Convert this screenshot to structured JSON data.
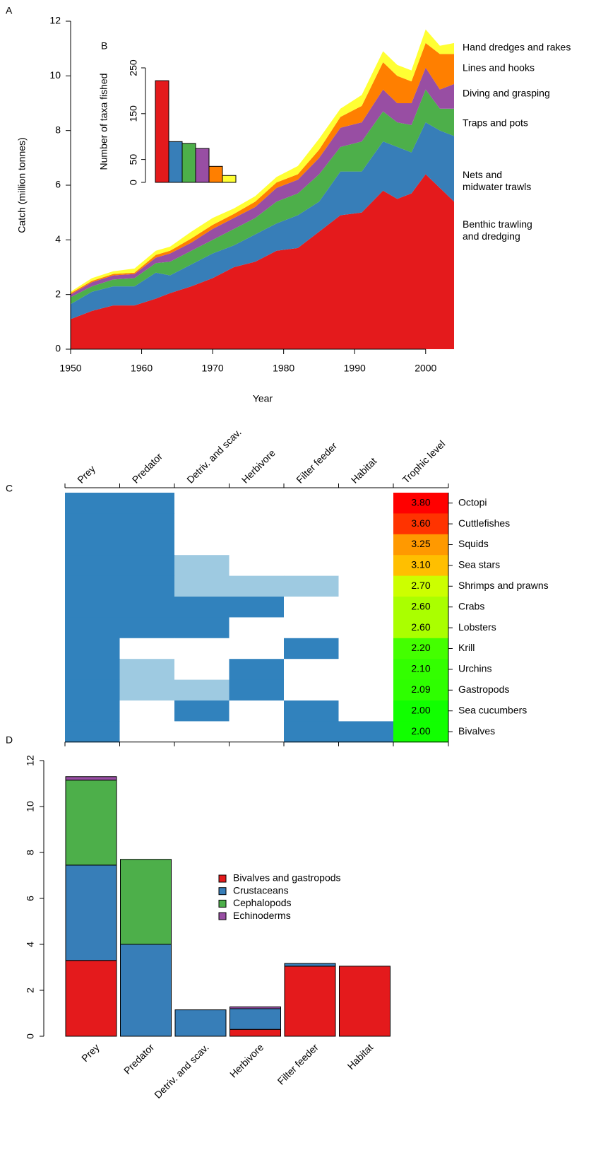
{
  "chart_data": [
    {
      "type": "area",
      "label": "A",
      "xlabel": "Year",
      "ylabel": "Catch (million tonnes)",
      "x": [
        1950,
        1953,
        1956,
        1959,
        1962,
        1964,
        1967,
        1970,
        1973,
        1976,
        1979,
        1982,
        1985,
        1988,
        1991,
        1994,
        1996,
        1998,
        2000,
        2002,
        2004
      ],
      "xlim": [
        1950,
        2004
      ],
      "xticks": [
        1950,
        1960,
        1970,
        1980,
        1990,
        2000
      ],
      "ylim": [
        0,
        12
      ],
      "yticks": [
        0,
        2,
        4,
        6,
        8,
        10,
        12
      ],
      "series": [
        {
          "name": "Benthic trawling\nand dredging",
          "color": "#e41a1c",
          "values": [
            1.1,
            1.4,
            1.6,
            1.6,
            1.85,
            2.05,
            2.3,
            2.6,
            3.0,
            3.2,
            3.6,
            3.7,
            4.3,
            4.9,
            5.0,
            5.8,
            5.5,
            5.7,
            6.4,
            5.9,
            5.4
          ]
        },
        {
          "name": "Nets and\nmidwater trawls",
          "color": "#377eb8",
          "values": [
            0.55,
            0.7,
            0.7,
            0.7,
            0.95,
            0.65,
            0.8,
            0.9,
            0.8,
            1.0,
            1.0,
            1.2,
            1.1,
            1.6,
            1.5,
            1.8,
            1.9,
            1.5,
            1.9,
            2.1,
            2.4
          ]
        },
        {
          "name": "Traps and pots",
          "color": "#4daf4a",
          "values": [
            0.25,
            0.2,
            0.25,
            0.3,
            0.35,
            0.5,
            0.5,
            0.5,
            0.6,
            0.6,
            0.8,
            0.8,
            1.0,
            0.9,
            1.1,
            1.1,
            0.9,
            1.0,
            1.2,
            0.8,
            1.0
          ]
        },
        {
          "name": "Diving and grasping",
          "color": "#984ea3",
          "values": [
            0.1,
            0.15,
            0.15,
            0.15,
            0.2,
            0.3,
            0.3,
            0.4,
            0.4,
            0.4,
            0.5,
            0.5,
            0.6,
            0.7,
            0.7,
            0.8,
            0.7,
            0.8,
            0.8,
            0.7,
            0.9
          ]
        },
        {
          "name": "Lines and hooks",
          "color": "#ff7f00",
          "values": [
            0.05,
            0.05,
            0.05,
            0.05,
            0.1,
            0.1,
            0.15,
            0.15,
            0.15,
            0.2,
            0.2,
            0.2,
            0.3,
            0.4,
            0.6,
            1.0,
            1.0,
            0.8,
            0.9,
            1.3,
            1.1
          ]
        },
        {
          "name": "Hand dredges and rakes",
          "color": "#ffff33",
          "values": [
            0.05,
            0.1,
            0.1,
            0.15,
            0.15,
            0.15,
            0.25,
            0.25,
            0.2,
            0.2,
            0.2,
            0.3,
            0.4,
            0.3,
            0.4,
            0.4,
            0.4,
            0.4,
            0.5,
            0.3,
            0.4
          ]
        }
      ]
    },
    {
      "type": "bar",
      "label": "B",
      "ylabel": "Number of taxa fished",
      "categories": [
        null,
        null,
        null,
        null,
        null,
        null
      ],
      "values": [
        222,
        89,
        85,
        74,
        35,
        15
      ],
      "colors": [
        "#e41a1c",
        "#377eb8",
        "#4daf4a",
        "#984ea3",
        "#ff7f00",
        "#ffff33"
      ],
      "ylim": [
        0,
        250
      ],
      "yticks": [
        0,
        50,
        150,
        250
      ]
    },
    {
      "type": "heatmap",
      "label": "C",
      "columns": [
        "Prey",
        "Predator",
        "Detriv. and scav.",
        "Herbivore",
        "Filter feeder",
        "Habitat"
      ],
      "rows": [
        "Octopi",
        "Cuttlefishes",
        "Squids",
        "Sea stars",
        "Shrimps and prawns",
        "Crabs",
        "Lobsters",
        "Krill",
        "Urchins",
        "Gastropods",
        "Sea cucumbers",
        "Bivalves"
      ],
      "cells": [
        [
          2,
          2,
          0,
          0,
          0,
          0
        ],
        [
          2,
          2,
          0,
          0,
          0,
          0
        ],
        [
          2,
          2,
          0,
          0,
          0,
          0
        ],
        [
          2,
          2,
          1,
          0,
          0,
          0
        ],
        [
          2,
          2,
          1,
          1,
          1,
          0
        ],
        [
          2,
          2,
          2,
          2,
          0,
          0
        ],
        [
          2,
          2,
          2,
          0,
          0,
          0
        ],
        [
          2,
          0,
          0,
          0,
          2,
          0
        ],
        [
          2,
          1,
          0,
          2,
          0,
          0
        ],
        [
          2,
          1,
          1,
          2,
          0,
          0
        ],
        [
          2,
          0,
          2,
          0,
          2,
          0
        ],
        [
          2,
          0,
          0,
          0,
          2,
          2
        ]
      ],
      "cell_colors": [
        "#ffffff",
        "#9ecae1",
        "#3182bd"
      ],
      "trophic": {
        "title": "Trophic level",
        "values": [
          3.8,
          3.6,
          3.25,
          3.1,
          2.7,
          2.6,
          2.6,
          2.2,
          2.1,
          2.09,
          2.0,
          2.0
        ],
        "value_labels": [
          "3.80",
          "3.60",
          "3.25",
          "3.10",
          "2.70",
          "2.60",
          "2.60",
          "2.20",
          "2.10",
          "2.09",
          "2.00",
          "2.00"
        ],
        "colors": [
          "#ff0000",
          "#ff3300",
          "#ff9900",
          "#ffbf00",
          "#ccff00",
          "#aaff00",
          "#aaff00",
          "#44ff00",
          "#33ff00",
          "#2eff00",
          "#11ff00",
          "#11ff00"
        ]
      }
    },
    {
      "type": "stacked-bar",
      "label": "D",
      "categories": [
        "Prey",
        "Predator",
        "Detriv. and scav.",
        "Herbivore",
        "Filter feeder",
        "Habitat"
      ],
      "ylim": [
        0,
        12
      ],
      "yticks": [
        0,
        2,
        4,
        6,
        8,
        10,
        12
      ],
      "series": [
        {
          "name": "Bivalves and gastropods",
          "color": "#e41a1c",
          "values": [
            3.3,
            0,
            0,
            0.3,
            3.05,
            3.05
          ]
        },
        {
          "name": "Crustaceans",
          "color": "#377eb8",
          "values": [
            4.15,
            4.0,
            1.15,
            0.9,
            0.12,
            0
          ]
        },
        {
          "name": "Cephalopods",
          "color": "#4daf4a",
          "values": [
            3.7,
            3.7,
            0,
            0,
            0,
            0
          ]
        },
        {
          "name": "Echinoderms",
          "color": "#984ea3",
          "values": [
            0.15,
            0,
            0,
            0.08,
            0,
            0
          ]
        }
      ]
    }
  ]
}
